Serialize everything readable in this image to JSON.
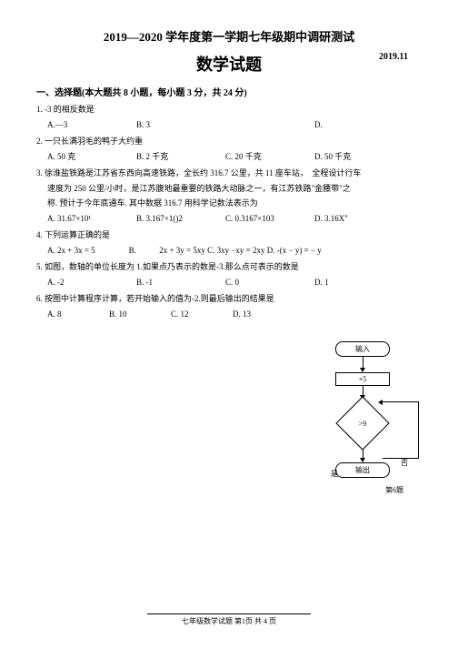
{
  "header": {
    "title_main": "2019—2020 学年度第一学期七年级期中调研测试",
    "title_sub": "数学试题",
    "date": "2019.11"
  },
  "section1": {
    "header": "一、选择题(本大题共 8 小题，每小题 3 分，共 24 分)"
  },
  "q1": {
    "text": "1. -3 的相反数是",
    "optA": "A.—3",
    "optB": "B. 3",
    "optC": "",
    "optD": "D."
  },
  "q2": {
    "text": "2. 一只长满羽毛的鸭子大约重",
    "optA": "A. 50 克",
    "optB": "B. 2 千克",
    "optC": "C. 20 千克",
    "optD": "D. 50 千克"
  },
  "q3": {
    "line1": "3. 徐淮盐铁路是江苏省东西向高速铁路，全长约 316.7 公里，共 11 座车站，　全程设计行车",
    "line2": "速度为 250 公里/小时，是江苏腹地最重要的铁路大动脉之一，有江苏铁路\"金腰带\"之",
    "line3": "称. 预计于今年底通车. 其中数据 316.7 用科学记数法表示为",
    "optA": "A. 31.67×10¹",
    "optB": "B. 3.167×1()2",
    "optC": "C. 0.3167×103",
    "optD": "D. 3.16X''"
  },
  "q4": {
    "text": "4. 下列运算正确的是",
    "optA": "A. 2x + 3x = 5",
    "optB": "B.",
    "optC": "2x + 3y = 5xy C. 3xy −xy = 2xy D. -(x − y) = − y",
    "optD": ""
  },
  "q5": {
    "text": "5. 如图，数轴的单位长度为 1.如果点乃表示的数是-3.那么点可表示的数是",
    "optA": "A. -2",
    "optB": "B. -1",
    "optC": "C. 0",
    "optD": "D. 1"
  },
  "q6": {
    "text": "6. 按图中计算程序计算，若开始输入的值为-2.则最后输出的结果是",
    "optA": "A. 8",
    "optB": "B. 10",
    "optC": "C. 12",
    "optD": "D. 13"
  },
  "flowchart": {
    "input": "输入",
    "op": "+5",
    "cond": ">9",
    "yes": "是",
    "no": "否",
    "output": "输出",
    "caption": "第6题"
  },
  "footer": {
    "text": "七年级数学试题 第1页 共 4 页"
  }
}
